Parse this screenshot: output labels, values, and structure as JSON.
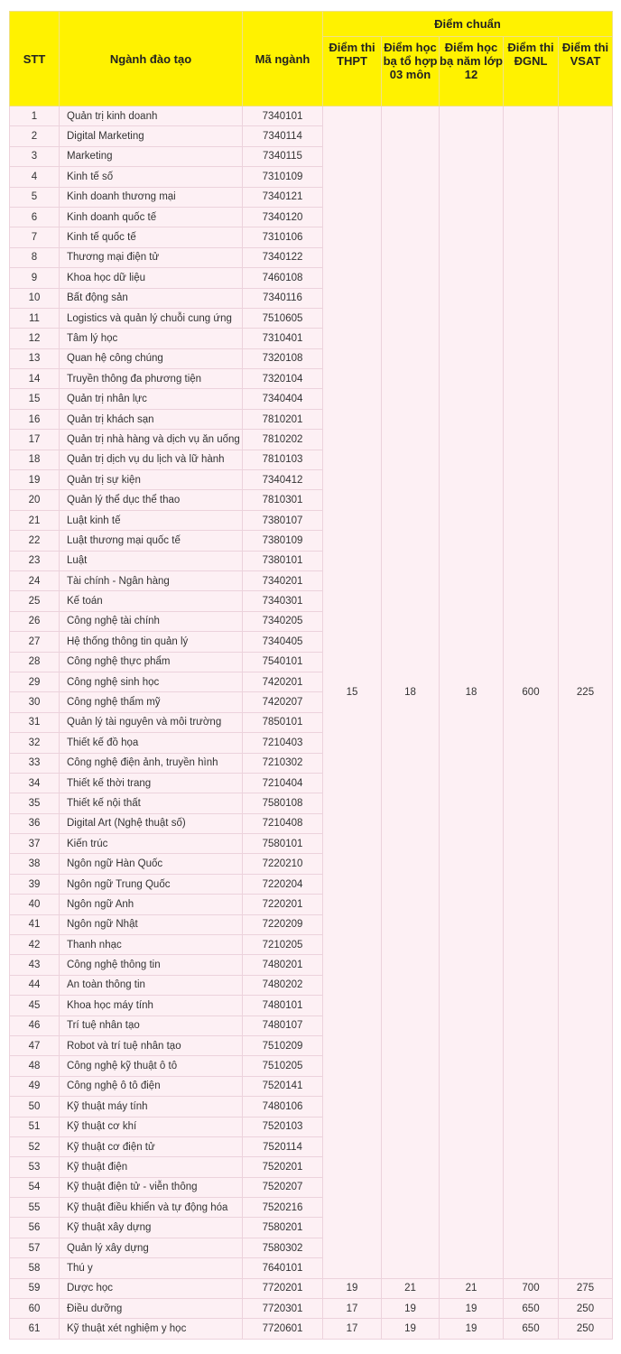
{
  "header": {
    "stt": "STT",
    "major": "Ngành đào tạo",
    "code": "Mã ngành",
    "group": "Điểm chuẩn",
    "thpt": "Điểm thi THPT",
    "hocba_to_hop": "Điểm học bạ tổ hợp 03 môn",
    "hocba_lop12": "Điểm học bạ năm lớp 12",
    "dgnl": "Điểm thi ĐGNL",
    "vsat": "Điểm thi VSAT"
  },
  "shared_scores_rows_1_58": {
    "thpt": "15",
    "hocba_to_hop": "18",
    "hocba_lop12": "18",
    "dgnl": "600",
    "vsat": "225"
  },
  "rows": [
    {
      "stt": "1",
      "name": "Quản trị kinh doanh",
      "code": "7340101"
    },
    {
      "stt": "2",
      "name": "Digital Marketing",
      "code": "7340114"
    },
    {
      "stt": "3",
      "name": "Marketing",
      "code": "7340115"
    },
    {
      "stt": "4",
      "name": "Kinh tế số",
      "code": "7310109"
    },
    {
      "stt": "5",
      "name": "Kinh doanh thương mại",
      "code": "7340121"
    },
    {
      "stt": "6",
      "name": "Kinh doanh quốc tế",
      "code": "7340120"
    },
    {
      "stt": "7",
      "name": "Kinh tế quốc tế",
      "code": "7310106"
    },
    {
      "stt": "8",
      "name": "Thương mại điện tử",
      "code": "7340122"
    },
    {
      "stt": "9",
      "name": "Khoa học dữ liệu",
      "code": "7460108"
    },
    {
      "stt": "10",
      "name": "Bất động sản",
      "code": "7340116"
    },
    {
      "stt": "11",
      "name": "Logistics và quản lý chuỗi cung ứng",
      "code": "7510605"
    },
    {
      "stt": "12",
      "name": "Tâm lý học",
      "code": "7310401"
    },
    {
      "stt": "13",
      "name": "Quan hệ công chúng",
      "code": "7320108"
    },
    {
      "stt": "14",
      "name": "Truyền thông đa phương tiện",
      "code": "7320104"
    },
    {
      "stt": "15",
      "name": "Quản trị nhân lực",
      "code": "7340404"
    },
    {
      "stt": "16",
      "name": "Quản trị khách sạn",
      "code": "7810201"
    },
    {
      "stt": "17",
      "name": "Quản trị nhà hàng và dịch vụ ăn uống",
      "code": "7810202"
    },
    {
      "stt": "18",
      "name": "Quản trị dịch vụ du lịch và lữ hành",
      "code": "7810103"
    },
    {
      "stt": "19",
      "name": "Quản trị sự kiện",
      "code": "7340412"
    },
    {
      "stt": "20",
      "name": "Quản lý thể dục thể thao",
      "code": "7810301"
    },
    {
      "stt": "21",
      "name": "Luật kinh tế",
      "code": "7380107"
    },
    {
      "stt": "22",
      "name": "Luật thương mại quốc tế",
      "code": "7380109"
    },
    {
      "stt": "23",
      "name": "Luật",
      "code": "7380101"
    },
    {
      "stt": "24",
      "name": "Tài chính - Ngân hàng",
      "code": "7340201"
    },
    {
      "stt": "25",
      "name": "Kế toán",
      "code": "7340301"
    },
    {
      "stt": "26",
      "name": "Công nghệ tài chính",
      "code": "7340205"
    },
    {
      "stt": "27",
      "name": "Hệ thống thông tin quản lý",
      "code": "7340405"
    },
    {
      "stt": "28",
      "name": "Công nghệ thực phẩm",
      "code": "7540101"
    },
    {
      "stt": "29",
      "name": "Công nghệ sinh học",
      "code": "7420201"
    },
    {
      "stt": "30",
      "name": "Công nghệ thẩm mỹ",
      "code": "7420207"
    },
    {
      "stt": "31",
      "name": "Quản lý tài nguyên và môi trường",
      "code": "7850101"
    },
    {
      "stt": "32",
      "name": "Thiết kế đồ họa",
      "code": "7210403"
    },
    {
      "stt": "33",
      "name": "Công nghệ điện ảnh, truyền hình",
      "code": "7210302"
    },
    {
      "stt": "34",
      "name": "Thiết kế thời trang",
      "code": "7210404"
    },
    {
      "stt": "35",
      "name": "Thiết kế nội thất",
      "code": "7580108"
    },
    {
      "stt": "36",
      "name": "Digital Art (Nghệ thuật số)",
      "code": "7210408"
    },
    {
      "stt": "37",
      "name": "Kiến trúc",
      "code": "7580101"
    },
    {
      "stt": "38",
      "name": "Ngôn ngữ Hàn Quốc",
      "code": "7220210"
    },
    {
      "stt": "39",
      "name": "Ngôn ngữ Trung Quốc",
      "code": "7220204"
    },
    {
      "stt": "40",
      "name": "Ngôn ngữ Anh",
      "code": "7220201"
    },
    {
      "stt": "41",
      "name": "Ngôn ngữ Nhật",
      "code": "7220209"
    },
    {
      "stt": "42",
      "name": "Thanh nhạc",
      "code": "7210205"
    },
    {
      "stt": "43",
      "name": "Công nghệ thông tin",
      "code": "7480201"
    },
    {
      "stt": "44",
      "name": "An toàn thông tin",
      "code": "7480202"
    },
    {
      "stt": "45",
      "name": "Khoa học máy tính",
      "code": "7480101"
    },
    {
      "stt": "46",
      "name": "Trí tuệ nhân tạo",
      "code": "7480107"
    },
    {
      "stt": "47",
      "name": "Robot và trí tuệ nhân tạo",
      "code": "7510209"
    },
    {
      "stt": "48",
      "name": "Công nghệ kỹ thuật ô tô",
      "code": "7510205"
    },
    {
      "stt": "49",
      "name": "Công nghệ ô tô điện",
      "code": "7520141"
    },
    {
      "stt": "50",
      "name": "Kỹ thuật máy tính",
      "code": "7480106"
    },
    {
      "stt": "51",
      "name": "Kỹ thuật cơ khí",
      "code": "7520103"
    },
    {
      "stt": "52",
      "name": "Kỹ thuật cơ điện tử",
      "code": "7520114"
    },
    {
      "stt": "53",
      "name": "Kỹ thuật điện",
      "code": "7520201"
    },
    {
      "stt": "54",
      "name": "Kỹ thuật điện tử - viễn thông",
      "code": "7520207"
    },
    {
      "stt": "55",
      "name": "Kỹ thuật điều khiển và tự động hóa",
      "code": "7520216"
    },
    {
      "stt": "56",
      "name": "Kỹ thuật xây dựng",
      "code": "7580201"
    },
    {
      "stt": "57",
      "name": "Quản lý xây dựng",
      "code": "7580302"
    },
    {
      "stt": "58",
      "name": "Thú y",
      "code": "7640101"
    },
    {
      "stt": "59",
      "name": "Dược học",
      "code": "7720201",
      "thpt": "19",
      "hocba_to_hop": "21",
      "hocba_lop12": "21",
      "dgnl": "700",
      "vsat": "275"
    },
    {
      "stt": "60",
      "name": "Điều dưỡng",
      "code": "7720301",
      "thpt": "17",
      "hocba_to_hop": "19",
      "hocba_lop12": "19",
      "dgnl": "650",
      "vsat": "250"
    },
    {
      "stt": "61",
      "name": "Kỹ thuật xét nghiệm y học",
      "code": "7720601",
      "thpt": "17",
      "hocba_to_hop": "19",
      "hocba_lop12": "19",
      "dgnl": "650",
      "vsat": "250"
    }
  ]
}
